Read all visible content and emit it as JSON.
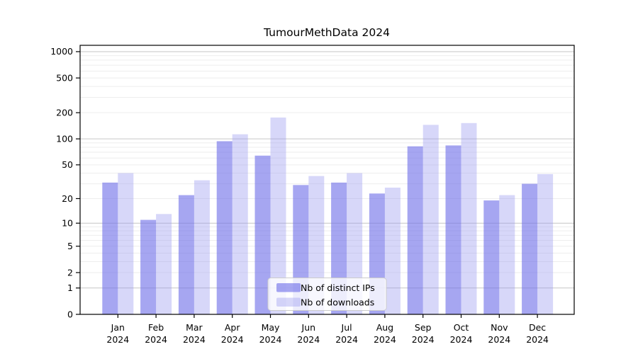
{
  "title": "TumourMethData 2024",
  "chart_data": {
    "type": "bar",
    "categories": [
      "Jan",
      "Feb",
      "Mar",
      "Apr",
      "May",
      "Jun",
      "Jul",
      "Aug",
      "Sep",
      "Oct",
      "Nov",
      "Dec"
    ],
    "category_year": "2024",
    "series": [
      {
        "name": "Nb of distinct IPs",
        "color": "rgba(111,111,232,0.62)",
        "values": [
          31,
          11,
          22,
          94,
          64,
          29,
          31,
          23,
          82,
          84,
          19,
          30
        ]
      },
      {
        "name": "Nb of downloads",
        "color": "rgba(150,150,240,0.38)",
        "values": [
          40,
          13,
          33,
          113,
          176,
          37,
          40,
          27,
          145,
          152,
          22,
          39
        ]
      }
    ],
    "yticks": [
      0,
      1,
      2,
      5,
      10,
      20,
      50,
      100,
      200,
      500,
      1000
    ],
    "y_scale": "log10(value+1)",
    "ylim": [
      0,
      1180
    ],
    "xlabel": "",
    "ylabel": "",
    "grid": "horizontal major and minor lines",
    "legend_position": "inside bottom-center",
    "colors": {
      "major_grid": "#c6c6c6",
      "minor_grid": "#ededed",
      "axis": "#000000",
      "legend_border": "#cccccc",
      "legend_background": "rgba(255,255,255,0.8)"
    }
  }
}
